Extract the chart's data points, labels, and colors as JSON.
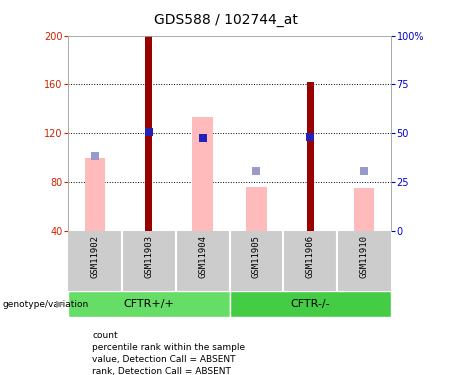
{
  "title": "GDS588 / 102744_at",
  "samples": [
    "GSM11902",
    "GSM11903",
    "GSM11904",
    "GSM11905",
    "GSM11906",
    "GSM11910"
  ],
  "ylim_left": [
    40,
    200
  ],
  "ylim_right": [
    0,
    100
  ],
  "yticks_left": [
    40,
    80,
    120,
    160,
    200
  ],
  "yticks_right": [
    0,
    25,
    50,
    75,
    100
  ],
  "ytick_labels_right": [
    "0",
    "25",
    "50",
    "75",
    "100%"
  ],
  "red_bars": {
    "GSM11903": 200,
    "GSM11906": 162
  },
  "pink_bars": {
    "GSM11902": 100,
    "GSM11904": 133,
    "GSM11905": 76,
    "GSM11910": 75
  },
  "blue_squares": {
    "GSM11903": 121,
    "GSM11904": 116,
    "GSM11906": 117
  },
  "lightblue_squares": {
    "GSM11902": 101,
    "GSM11905": 89,
    "GSM11910": 89
  },
  "groups": [
    {
      "label": "CFTR+/+",
      "color": "#66dd66"
    },
    {
      "label": "CFTR-/-",
      "color": "#44cc44"
    }
  ],
  "red_bar_color": "#990000",
  "pink_bar_color": "#ffbbbb",
  "blue_sq_color": "#2222bb",
  "lightblue_sq_color": "#9999cc",
  "bar_bottom": 40,
  "pink_bar_width": 0.38,
  "red_bar_width": 0.13,
  "sq_size": 30,
  "ylabel_left_color": "#cc2200",
  "ylabel_right_color": "#0000cc",
  "legend_items": [
    {
      "label": "count",
      "color": "#990000"
    },
    {
      "label": "percentile rank within the sample",
      "color": "#2222bb"
    },
    {
      "label": "value, Detection Call = ABSENT",
      "color": "#ffbbbb"
    },
    {
      "label": "rank, Detection Call = ABSENT",
      "color": "#9999cc"
    }
  ],
  "background_color": "#ffffff",
  "sample_area_color": "#cccccc",
  "sample_divider_color": "#ffffff",
  "genotype_label": "genotype/variation"
}
